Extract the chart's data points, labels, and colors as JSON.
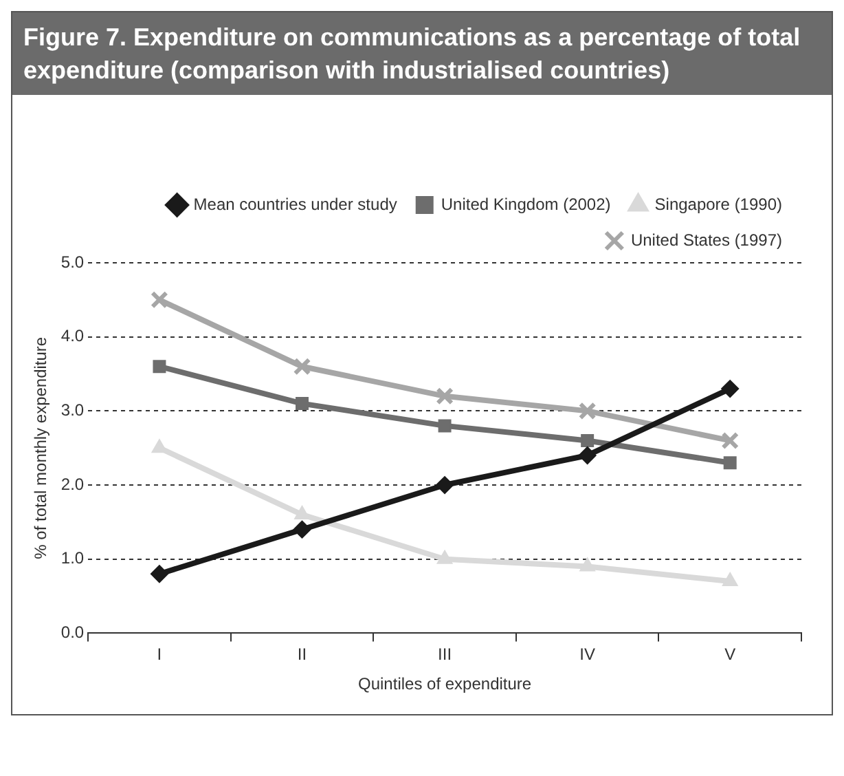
{
  "chart_data": {
    "type": "line",
    "title": "Figure 7. Expenditure on communications as a percentage of total expenditure (comparison with industrialised countries)",
    "xlabel": "Quintiles of expenditure",
    "ylabel": "% of total monthly expenditure",
    "categories": [
      "I",
      "II",
      "III",
      "IV",
      "V"
    ],
    "series": [
      {
        "name": "Mean countries under study",
        "color": "#1a1a1a",
        "marker": "diamond",
        "values": [
          0.8,
          1.4,
          2.0,
          2.4,
          3.3
        ]
      },
      {
        "name": "United Kingdom (2002)",
        "color": "#6d6d6d",
        "marker": "square",
        "values": [
          3.6,
          3.1,
          2.8,
          2.6,
          2.3
        ]
      },
      {
        "name": "Singapore (1990)",
        "color": "#d9d9d9",
        "marker": "triangle",
        "values": [
          2.5,
          1.6,
          1.0,
          0.9,
          0.7
        ]
      },
      {
        "name": "United States (1997)",
        "color": "#a6a6a6",
        "marker": "cross",
        "values": [
          4.5,
          3.6,
          3.2,
          3.0,
          2.6
        ]
      }
    ],
    "ylim": [
      0,
      5
    ],
    "yticks": [
      {
        "value": 0,
        "label": "0.0"
      },
      {
        "value": 1,
        "label": "1.0"
      },
      {
        "value": 2,
        "label": "2.0"
      },
      {
        "value": 3,
        "label": "3.0"
      },
      {
        "value": 4,
        "label": "4.0"
      },
      {
        "value": 5,
        "label": "5.0"
      }
    ],
    "grid": "y",
    "legend": "top",
    "line_style": "solid"
  }
}
